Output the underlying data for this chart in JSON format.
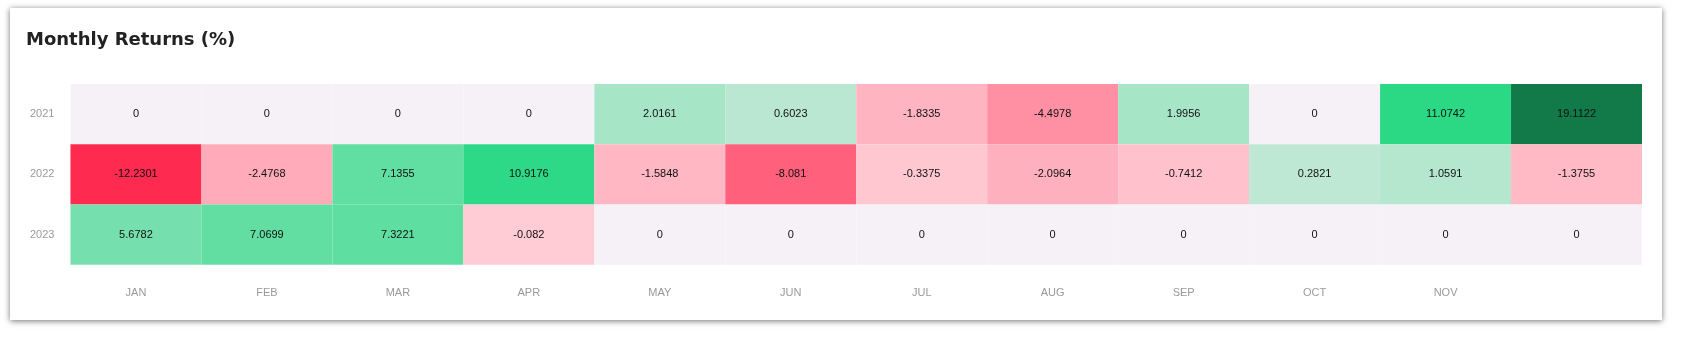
{
  "chart_data": {
    "type": "heatmap",
    "title": "Monthly Returns (%)",
    "categories": [
      "JAN",
      "FEB",
      "MAR",
      "APR",
      "MAY",
      "JUN",
      "JUL",
      "AUG",
      "SEP",
      "OCT",
      "NOV",
      null
    ],
    "y_categories": [
      "2021",
      "2022",
      "2023"
    ],
    "data_labels": true,
    "cells": [
      [
        0,
        0,
        0,
        0,
        2.0161,
        0.6023,
        -1.8335,
        -4.4978,
        1.9956,
        0,
        11.0742,
        19.1122
      ],
      [
        -12.2301,
        -2.4768,
        7.1355,
        10.9176,
        -1.5848,
        -8.081,
        -0.3375,
        -2.0964,
        -0.7412,
        0.2821,
        1.0591,
        -1.3755
      ],
      [
        5.6782,
        7.0699,
        7.3221,
        -0.082,
        0,
        0,
        0,
        0,
        0,
        0,
        0,
        0
      ]
    ]
  }
}
